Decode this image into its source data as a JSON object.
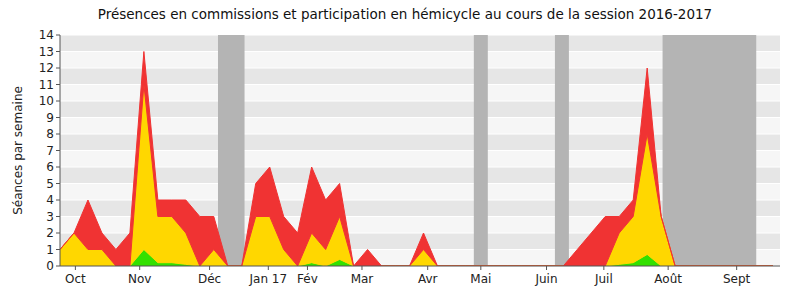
{
  "chart_data": {
    "type": "area",
    "stacked": true,
    "grid": true,
    "title": "Présences en commissions et participation en hémicycle au cours de la session 2016-2017",
    "y_label": "Séances par semaine",
    "x": [
      0,
      1,
      2,
      3,
      4,
      5,
      6,
      7,
      8,
      9,
      10,
      11,
      12,
      13,
      14,
      15,
      16,
      17,
      18,
      19,
      20,
      21,
      22,
      23,
      24,
      25,
      26,
      27,
      28,
      29,
      30,
      31,
      32,
      33,
      34,
      35,
      36,
      37,
      38,
      39,
      40,
      41,
      42,
      43,
      44,
      45,
      46,
      47,
      48,
      49,
      50,
      51
    ],
    "xlim": [
      0,
      51.5
    ],
    "xticks": [
      {
        "value": 1.1,
        "label": "Oct"
      },
      {
        "value": 5.7,
        "label": "Nov"
      },
      {
        "value": 10.7,
        "label": "Déc"
      },
      {
        "value": 14.9,
        "label": "Jan 17"
      },
      {
        "value": 17.7,
        "label": "Fév"
      },
      {
        "value": 21.6,
        "label": "Mar"
      },
      {
        "value": 26.3,
        "label": "Avr"
      },
      {
        "value": 30.1,
        "label": "Mai"
      },
      {
        "value": 34.8,
        "label": "Juin"
      },
      {
        "value": 38.9,
        "label": "Juil"
      },
      {
        "value": 43.5,
        "label": "Août"
      },
      {
        "value": 48.4,
        "label": "Sept"
      }
    ],
    "ylim": [
      0,
      14
    ],
    "yticks": [
      0,
      1,
      2,
      3,
      4,
      5,
      6,
      7,
      8,
      9,
      10,
      11,
      12,
      13,
      14
    ],
    "shaded_periods": [
      [
        11.3,
        13.2
      ],
      [
        29.6,
        30.6
      ],
      [
        35.4,
        36.4
      ],
      [
        43.1,
        49.8
      ]
    ],
    "shaded_color": "#b4b4b4",
    "series": [
      {
        "color": "#33e000",
        "values": [
          0,
          0,
          0,
          0,
          0,
          0,
          1,
          0.2,
          0.2,
          0.1,
          0,
          0,
          0,
          0,
          0,
          0,
          0,
          0,
          0.2,
          0,
          0.4,
          0,
          0,
          0,
          0,
          0,
          0,
          0,
          0,
          0,
          0,
          0,
          0,
          0,
          0,
          0,
          0,
          0,
          0,
          0,
          0.1,
          0.2,
          0.7,
          0,
          0,
          0,
          0,
          0,
          0,
          0,
          0,
          0
        ]
      },
      {
        "color": "#ffd700",
        "values": [
          1,
          2,
          1,
          1,
          0,
          0,
          10,
          2.8,
          2.8,
          1.9,
          0,
          1,
          0,
          0,
          3,
          3,
          1,
          0,
          1.8,
          1,
          2.6,
          0,
          0,
          0,
          0,
          0,
          1,
          0,
          0,
          0,
          0,
          0,
          0,
          0,
          0,
          0,
          0,
          0,
          0,
          0,
          1.9,
          2.8,
          7.3,
          3,
          0,
          0,
          0,
          0,
          0,
          0,
          0,
          0
        ]
      },
      {
        "color": "#f03333",
        "values": [
          0,
          0,
          3,
          1,
          1,
          2,
          2,
          1,
          1,
          2,
          3,
          2,
          0,
          0,
          2,
          3,
          2,
          2,
          4,
          3,
          2,
          0,
          1,
          0,
          0,
          0,
          1,
          0,
          0,
          0,
          0,
          0,
          0,
          0,
          0,
          0,
          0,
          1,
          2,
          3,
          1,
          1,
          4,
          0,
          0,
          0,
          0,
          0,
          0,
          0,
          0,
          0
        ]
      }
    ]
  }
}
